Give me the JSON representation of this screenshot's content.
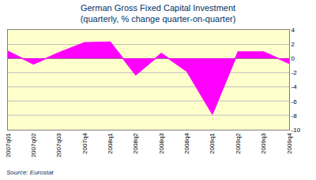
{
  "chart_data": {
    "type": "area",
    "title": "German Gross Fixed Capital Investment",
    "subtitle": "(quarterly, % change quarter-on-quarter)",
    "source": "Source: Eurostat",
    "categories": [
      "2007q01",
      "2007q02",
      "2007q03",
      "2007q4",
      "2008q1",
      "2008q2",
      "2008q3",
      "2008q4",
      "2009q1",
      "2009q2",
      "2009q3",
      "2009q4"
    ],
    "values": [
      1.0,
      -0.8,
      0.8,
      2.2,
      2.3,
      -2.3,
      0.7,
      -1.8,
      -7.8,
      0.9,
      0.9,
      -0.7
    ],
    "color": "#ff00ff",
    "ylim": [
      -10,
      4
    ],
    "yticks": [
      -10,
      -8,
      -6,
      -4,
      -2,
      0,
      2,
      4
    ],
    "grid": true
  }
}
